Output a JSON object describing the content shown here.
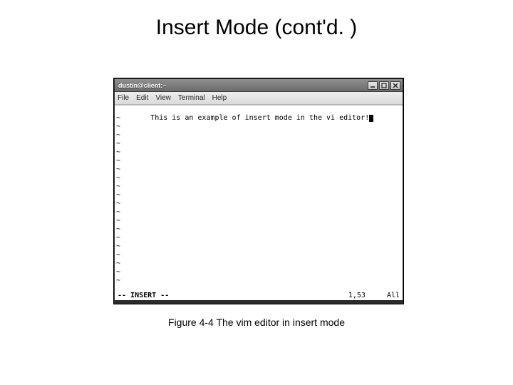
{
  "slide": {
    "title": "Insert Mode (cont'd. )",
    "caption": "Figure 4-4 The vim editor in insert mode"
  },
  "window": {
    "title": "dustin@client:~",
    "controls": {
      "minimize_name": "minimize-icon",
      "maximize_name": "maximize-icon",
      "close_name": "close-icon"
    }
  },
  "menubar": {
    "items": [
      "File",
      "Edit",
      "View",
      "Terminal",
      "Help"
    ]
  },
  "editor": {
    "text_line": "This is an example of insert mode in the vi editor!",
    "tilde": "~",
    "tilde_count": 20
  },
  "statusbar": {
    "mode": "-- INSERT --",
    "position": "1,53",
    "percent": "All"
  },
  "colors": {
    "titlebar_start": "#8f8f8f",
    "titlebar_end": "#6b6b6b",
    "menubar_start": "#eeeeee",
    "menubar_end": "#dadada",
    "window_border": "#2a2a2a",
    "text": "#000000",
    "editor_bg": "#ffffff"
  }
}
